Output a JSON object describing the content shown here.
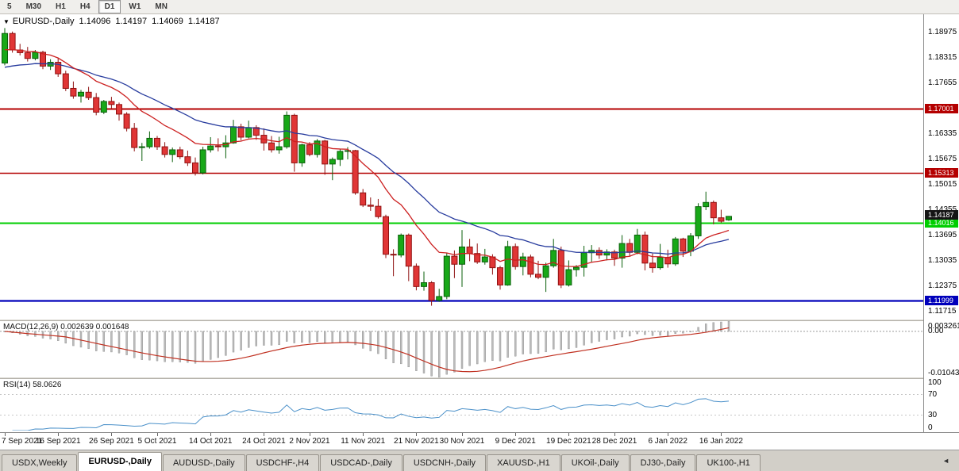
{
  "toolbar": {
    "buttons": [
      "5",
      "M30",
      "H1",
      "H4",
      "D1",
      "W1",
      "MN"
    ],
    "active": "D1"
  },
  "icons": {
    "chart_menu_arrow": "▼",
    "tab_scroll_left": "◄"
  },
  "chart_header": {
    "symbol_label": "EURUSD-,Daily",
    "open": "1.14096",
    "high": "1.14197",
    "low": "1.14069",
    "close": "1.14187"
  },
  "chart_data": {
    "type": "candlestick",
    "symbol": "EURUSD-,Daily",
    "y_range": [
      1.115,
      1.1945
    ],
    "y_ticks": [
      "1.18975",
      "1.18315",
      "1.17655",
      "1.16335",
      "1.15675",
      "1.15015",
      "1.14355",
      "1.13695",
      "1.13035",
      "1.12375",
      "1.11715"
    ],
    "current_price": 1.14187,
    "current_price_label": "1.14187",
    "levels": [
      {
        "price": 1.17001,
        "label": "1.17001",
        "color": "#b40000",
        "width": 2
      },
      {
        "price": 1.15313,
        "label": "1.15313",
        "color": "#b40000",
        "width": 1.4
      },
      {
        "price": 1.14016,
        "label": "1.14016",
        "color": "#00ce00",
        "width": 2
      },
      {
        "price": 1.11999,
        "label": "1.11999",
        "color": "#0000bb",
        "width": 2.2
      }
    ],
    "style": {
      "up_fill": "#18a818",
      "up_border": "#0a5f0a",
      "down_fill": "#e03636",
      "down_border": "#8f1212"
    },
    "ma_lines": [
      {
        "name": "fast-ma",
        "color": "#cc2020",
        "period": 12,
        "seed": 1.1845
      },
      {
        "name": "slow-ma",
        "color": "#283c9e",
        "period": 26,
        "seed": 1.18
      }
    ],
    "x_axis_labels": [
      {
        "i": 0,
        "t": "7 Sep 2021"
      },
      {
        "i": 7,
        "t": "16 Sep 2021"
      },
      {
        "i": 14,
        "t": "26 Sep 2021"
      },
      {
        "i": 20,
        "t": "5 Oct 2021"
      },
      {
        "i": 27,
        "t": "14 Oct 2021"
      },
      {
        "i": 34,
        "t": "24 Oct 2021"
      },
      {
        "i": 40,
        "t": "2 Nov 2021"
      },
      {
        "i": 47,
        "t": "11 Nov 2021"
      },
      {
        "i": 54,
        "t": "21 Nov 2021"
      },
      {
        "i": 60,
        "t": "30 Nov 2021"
      },
      {
        "i": 67,
        "t": "9 Dec 2021"
      },
      {
        "i": 74,
        "t": "19 Dec 2021"
      },
      {
        "i": 80,
        "t": "28 Dec 2021"
      },
      {
        "i": 87,
        "t": "6 Jan 2022"
      },
      {
        "i": 94,
        "t": "16 Jan 2022"
      }
    ],
    "candles": [
      [
        1.1818,
        1.1909,
        1.1812,
        1.1895
      ],
      [
        1.1895,
        1.19,
        1.1845,
        1.1852
      ],
      [
        1.1852,
        1.1868,
        1.1838,
        1.1845
      ],
      [
        1.1845,
        1.186,
        1.1822,
        1.183
      ],
      [
        1.183,
        1.1852,
        1.1825,
        1.1846
      ],
      [
        1.1846,
        1.185,
        1.1802,
        1.181
      ],
      [
        1.181,
        1.1828,
        1.18,
        1.182
      ],
      [
        1.182,
        1.1832,
        1.1782,
        1.179
      ],
      [
        1.179,
        1.1798,
        1.1745,
        1.1752
      ],
      [
        1.1752,
        1.177,
        1.1725,
        1.1732
      ],
      [
        1.1732,
        1.1748,
        1.1715,
        1.1742
      ],
      [
        1.1742,
        1.1756,
        1.1722,
        1.1728
      ],
      [
        1.1728,
        1.174,
        1.1682,
        1.169
      ],
      [
        1.169,
        1.1722,
        1.1685,
        1.1718
      ],
      [
        1.1718,
        1.173,
        1.17,
        1.171
      ],
      [
        1.171,
        1.1715,
        1.1668,
        1.1685
      ],
      [
        1.1685,
        1.169,
        1.164,
        1.1648
      ],
      [
        1.1648,
        1.1662,
        1.1588,
        1.1598
      ],
      [
        1.1598,
        1.161,
        1.1563,
        1.16
      ],
      [
        1.16,
        1.164,
        1.1595,
        1.1622
      ],
      [
        1.1622,
        1.1628,
        1.1592,
        1.16
      ],
      [
        1.16,
        1.1612,
        1.1572,
        1.158
      ],
      [
        1.158,
        1.1598,
        1.156,
        1.1592
      ],
      [
        1.1592,
        1.16,
        1.1568,
        1.1574
      ],
      [
        1.1574,
        1.159,
        1.155,
        1.1558
      ],
      [
        1.1558,
        1.1572,
        1.1525,
        1.1532
      ],
      [
        1.1532,
        1.16,
        1.1528,
        1.1592
      ],
      [
        1.1592,
        1.1625,
        1.1585,
        1.1602
      ],
      [
        1.1602,
        1.1622,
        1.1588,
        1.16
      ],
      [
        1.16,
        1.163,
        1.157,
        1.161
      ],
      [
        1.161,
        1.167,
        1.1608,
        1.1652
      ],
      [
        1.1652,
        1.166,
        1.1617,
        1.1625
      ],
      [
        1.1625,
        1.1668,
        1.1622,
        1.165
      ],
      [
        1.165,
        1.1656,
        1.1618,
        1.163
      ],
      [
        1.163,
        1.1648,
        1.159,
        1.161
      ],
      [
        1.161,
        1.1628,
        1.1585,
        1.1592
      ],
      [
        1.1592,
        1.1626,
        1.1582,
        1.16
      ],
      [
        1.16,
        1.1692,
        1.1595,
        1.1682
      ],
      [
        1.1682,
        1.1686,
        1.1535,
        1.1558
      ],
      [
        1.1558,
        1.1608,
        1.1548,
        1.1605
      ],
      [
        1.1605,
        1.1612,
        1.1575,
        1.158
      ],
      [
        1.158,
        1.162,
        1.1572,
        1.1615
      ],
      [
        1.1615,
        1.1618,
        1.1527,
        1.1555
      ],
      [
        1.1555,
        1.1572,
        1.1513,
        1.1567
      ],
      [
        1.1567,
        1.1594,
        1.155,
        1.1588
      ],
      [
        1.1588,
        1.1599,
        1.1567,
        1.159
      ],
      [
        1.159,
        1.1592,
        1.1475,
        1.148
      ],
      [
        1.148,
        1.149,
        1.1443,
        1.1448
      ],
      [
        1.1448,
        1.1468,
        1.1433,
        1.1445
      ],
      [
        1.1445,
        1.1464,
        1.1413,
        1.1418
      ],
      [
        1.1418,
        1.1423,
        1.131,
        1.132
      ],
      [
        1.132,
        1.1333,
        1.1263,
        1.1318
      ],
      [
        1.1318,
        1.1374,
        1.1312,
        1.137
      ],
      [
        1.137,
        1.1374,
        1.125,
        1.1289
      ],
      [
        1.1289,
        1.1296,
        1.1226,
        1.1236
      ],
      [
        1.1236,
        1.1275,
        1.1225,
        1.1246
      ],
      [
        1.1246,
        1.125,
        1.1186,
        1.12
      ],
      [
        1.12,
        1.123,
        1.1196,
        1.121
      ],
      [
        1.121,
        1.1323,
        1.1203,
        1.1315
      ],
      [
        1.1315,
        1.133,
        1.1258,
        1.1294
      ],
      [
        1.1294,
        1.1383,
        1.1235,
        1.1339
      ],
      [
        1.1339,
        1.136,
        1.1302,
        1.1322
      ],
      [
        1.1322,
        1.1348,
        1.1295,
        1.13
      ],
      [
        1.13,
        1.1334,
        1.1293,
        1.1313
      ],
      [
        1.1313,
        1.132,
        1.1267,
        1.1285
      ],
      [
        1.1285,
        1.129,
        1.1228,
        1.124
      ],
      [
        1.124,
        1.1355,
        1.1238,
        1.134
      ],
      [
        1.134,
        1.1348,
        1.128,
        1.1288
      ],
      [
        1.1288,
        1.1324,
        1.1265,
        1.1313
      ],
      [
        1.1313,
        1.1319,
        1.126,
        1.1268
      ],
      [
        1.1268,
        1.1303,
        1.1255,
        1.126
      ],
      [
        1.126,
        1.1298,
        1.1222,
        1.129
      ],
      [
        1.129,
        1.136,
        1.1285,
        1.133
      ],
      [
        1.133,
        1.134,
        1.1232,
        1.124
      ],
      [
        1.124,
        1.1304,
        1.1236,
        1.128
      ],
      [
        1.128,
        1.1292,
        1.1262,
        1.1286
      ],
      [
        1.1286,
        1.1342,
        1.1262,
        1.1324
      ],
      [
        1.1324,
        1.1344,
        1.13,
        1.133
      ],
      [
        1.133,
        1.1338,
        1.1308,
        1.1318
      ],
      [
        1.1318,
        1.1333,
        1.1304,
        1.1326
      ],
      [
        1.1326,
        1.1332,
        1.129,
        1.131
      ],
      [
        1.131,
        1.137,
        1.1285,
        1.1348
      ],
      [
        1.1348,
        1.136,
        1.1315,
        1.1325
      ],
      [
        1.1325,
        1.1386,
        1.132,
        1.137
      ],
      [
        1.137,
        1.1379,
        1.1278,
        1.1297
      ],
      [
        1.1297,
        1.1322,
        1.1272,
        1.1285
      ],
      [
        1.1285,
        1.1347,
        1.128,
        1.1312
      ],
      [
        1.1312,
        1.1332,
        1.1285,
        1.1295
      ],
      [
        1.1295,
        1.1365,
        1.129,
        1.136
      ],
      [
        1.136,
        1.1363,
        1.1313,
        1.1328
      ],
      [
        1.1328,
        1.1375,
        1.1315,
        1.1368
      ],
      [
        1.1368,
        1.1453,
        1.136,
        1.1444
      ],
      [
        1.1444,
        1.1483,
        1.1435,
        1.1455
      ],
      [
        1.1455,
        1.146,
        1.1398,
        1.1415
      ],
      [
        1.1415,
        1.1436,
        1.1402,
        1.1406
      ],
      [
        1.14096,
        1.14197,
        1.14069,
        1.14187
      ]
    ],
    "sub_indicators": [
      {
        "name": "MACD",
        "label": "MACD(12,26,9) 0.002639 0.001648",
        "params": [
          12,
          26,
          9
        ],
        "values_shown": [
          "0.002639",
          "0.001648"
        ],
        "axis_labels": [
          "0.003261",
          "0.00",
          "-0.010436"
        ],
        "histogram_color": "#bbbbbb",
        "signal_color": "#c03020"
      },
      {
        "name": "RSI",
        "label": "RSI(14) 58.0626",
        "period": 14,
        "value_shown": "58.0626",
        "axis_labels": [
          "100",
          "70",
          "30",
          "0"
        ],
        "levels": [
          70,
          30
        ],
        "line_color": "#4a90c9"
      }
    ]
  },
  "tabs": {
    "items": [
      "USDX,Weekly",
      "EURUSD-,Daily",
      "AUDUSD-,Daily",
      "USDCHF-,H4",
      "USDCAD-,Daily",
      "USDCNH-,Daily",
      "XAUUSD-,H1",
      "UKOil-,Daily",
      "DJ30-,Daily",
      "UK100-,H1"
    ],
    "active_index": 1
  }
}
